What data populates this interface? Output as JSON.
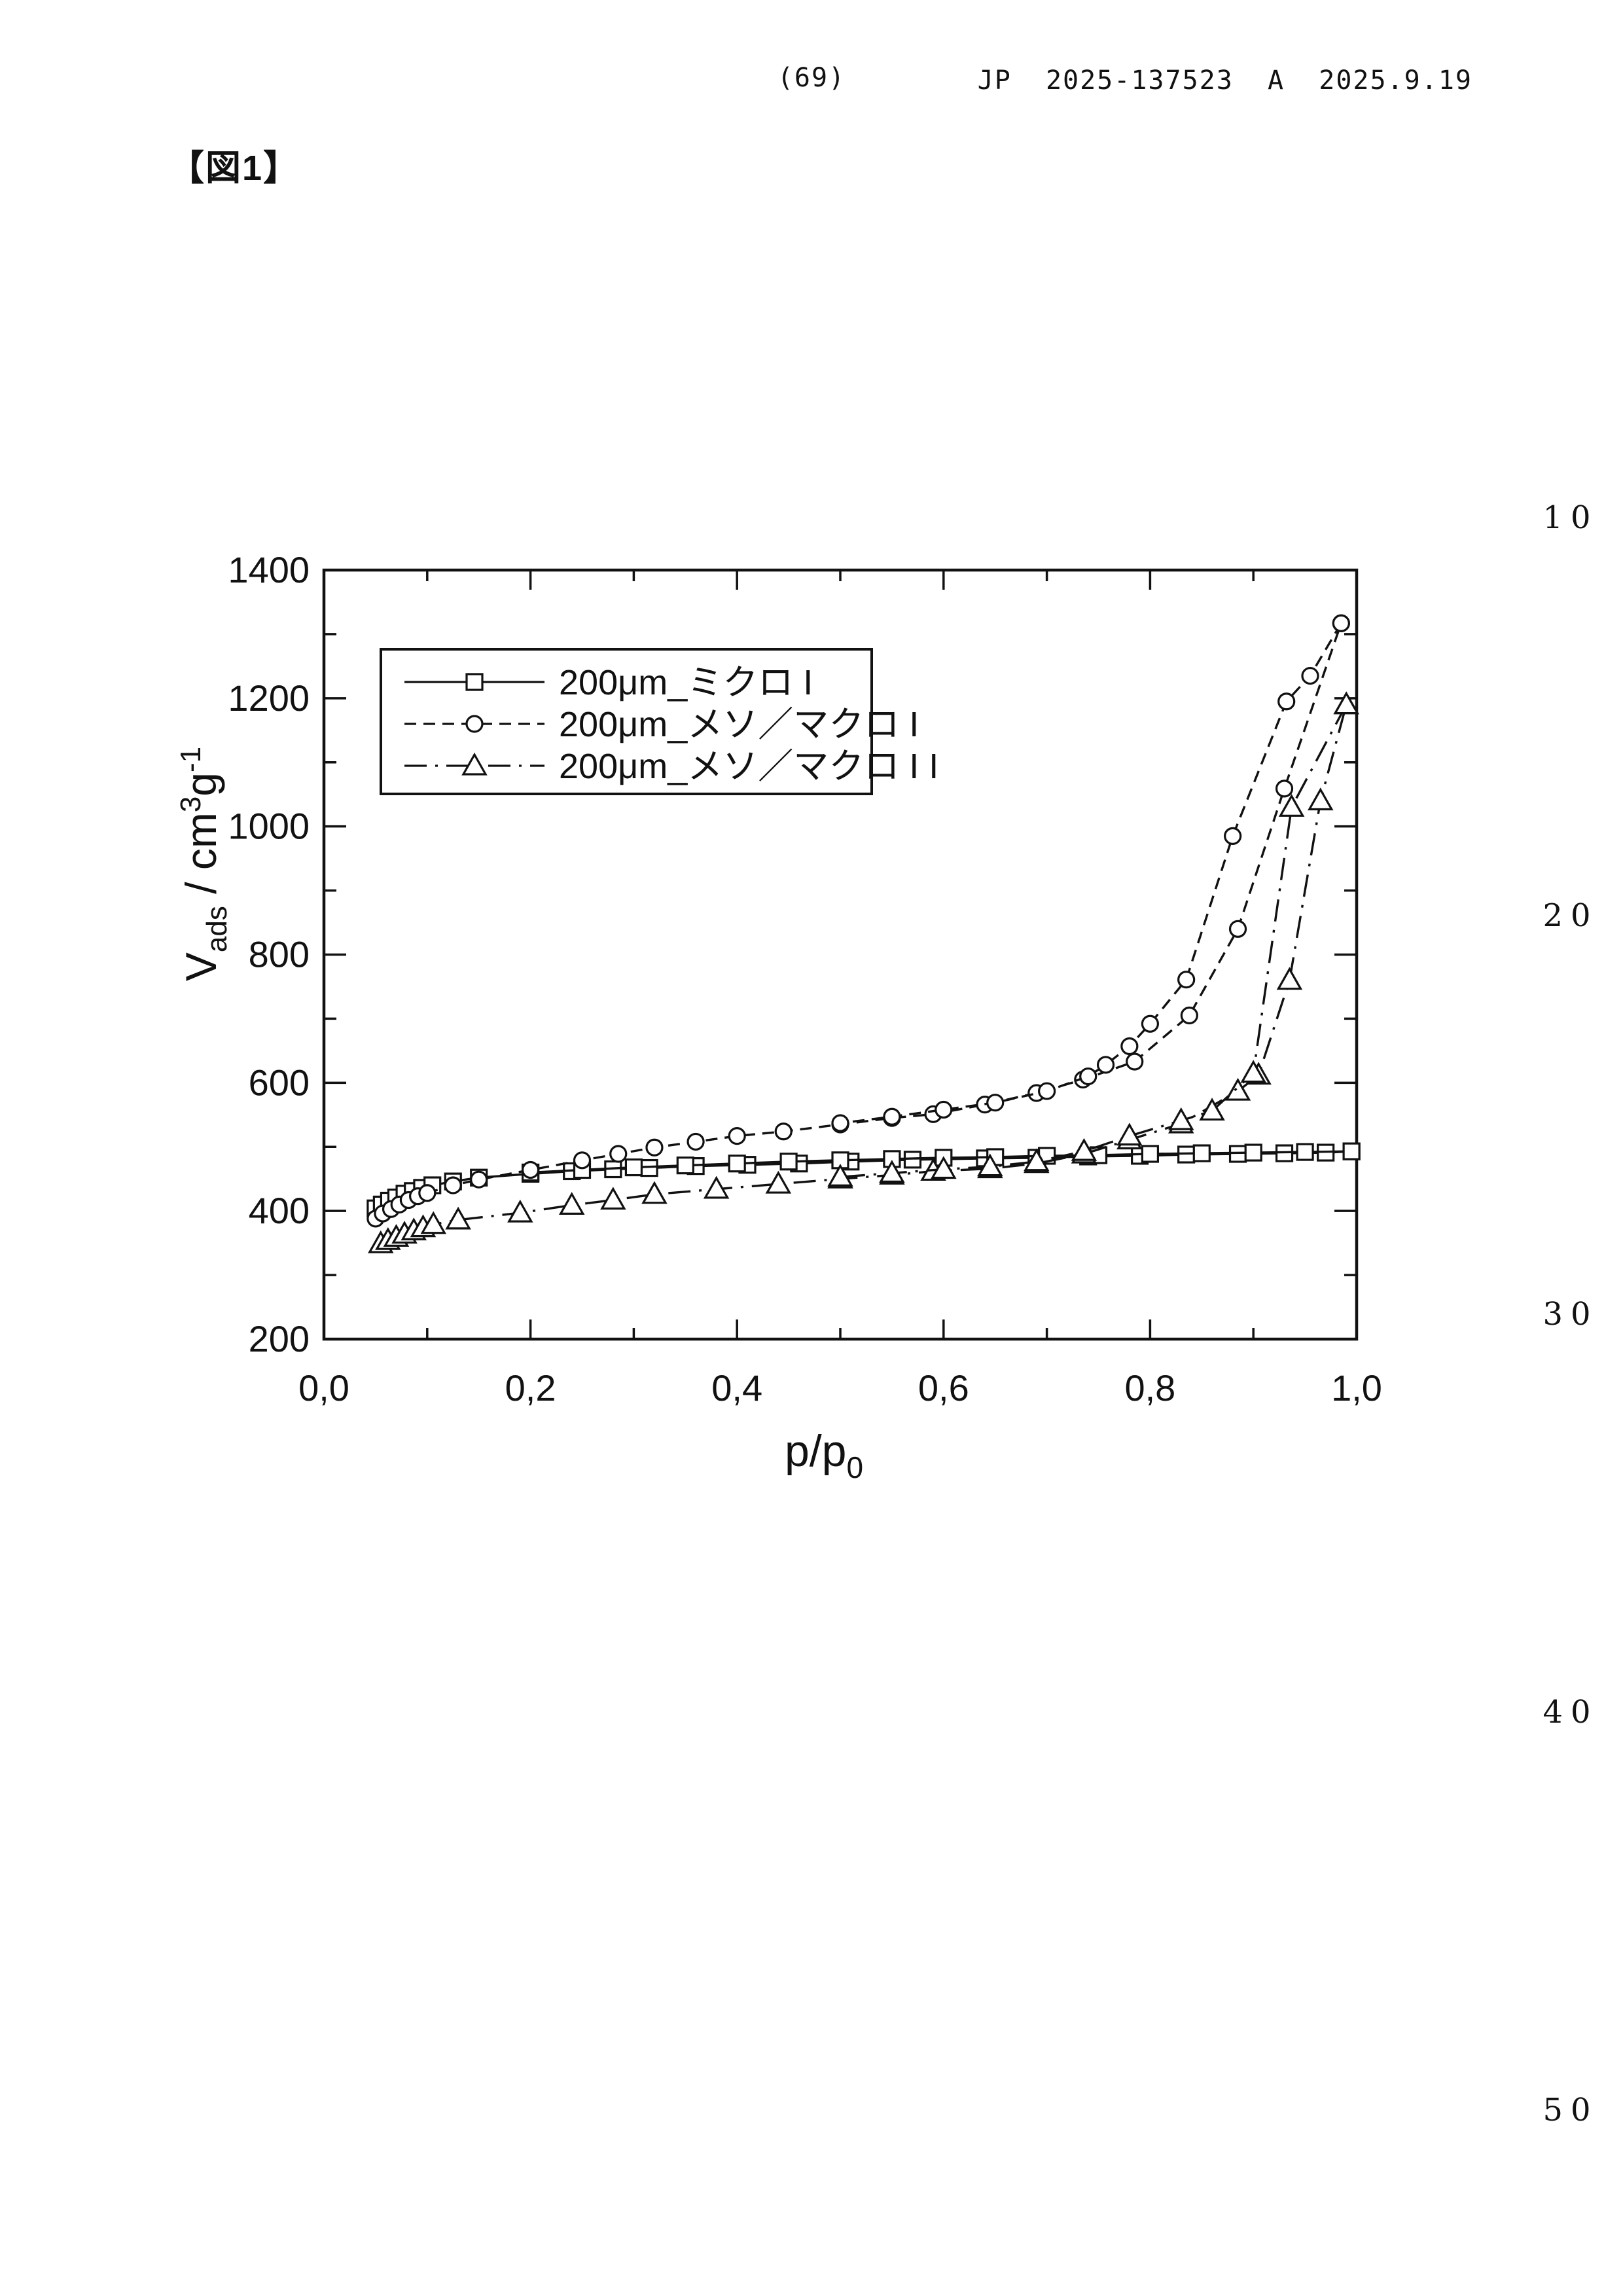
{
  "page": {
    "header": {
      "page_number": "(69)",
      "publication": "JP  2025-137523  A  2025.9.19"
    },
    "figure_label": "【図1】",
    "margin_line_numbers": [
      "10",
      "20",
      "30",
      "40",
      "50"
    ]
  },
  "colors": {
    "ink": "#111111",
    "paper": "#ffffff"
  },
  "chart_data": {
    "type": "line",
    "title": "",
    "xlabel": {
      "base": "p/p",
      "sub": "0"
    },
    "ylabel": {
      "base": "V",
      "sub": "ads",
      "mid": " / cm",
      "sup1": "3",
      "mid2": "g",
      "sup2": "-1"
    },
    "xlim": [
      0.0,
      1.0
    ],
    "ylim": [
      200,
      1400
    ],
    "x_ticks": [
      0.0,
      0.2,
      0.4,
      0.6,
      0.8,
      1.0
    ],
    "x_tick_labels": [
      "0,0",
      "0,2",
      "0,4",
      "0,6",
      "0,8",
      "1,0"
    ],
    "x_minor_step": 0.1,
    "y_ticks": [
      200,
      400,
      600,
      800,
      1000,
      1200,
      1400
    ],
    "y_tick_labels": [
      "200",
      "400",
      "600",
      "800",
      "1000",
      "1200",
      "1400"
    ],
    "y_minor_step": 100,
    "grid": false,
    "legend_position": "upper-left-inside",
    "legend": [
      {
        "label": "200μm_ミクロ I",
        "marker": "square",
        "line": "solid"
      },
      {
        "label": "200μm_メソ／マクロ I",
        "marker": "circle",
        "line": "dashed"
      },
      {
        "label": "200μm_メソ／マクロ I I",
        "marker": "triangle",
        "line": "dashdot"
      }
    ],
    "series": [
      {
        "name": "200μm_ミクロ I (adsorption)",
        "marker": "square",
        "line": "solid",
        "points": [
          [
            0.05,
            404
          ],
          [
            0.056,
            410
          ],
          [
            0.063,
            416
          ],
          [
            0.07,
            421
          ],
          [
            0.078,
            427
          ],
          [
            0.086,
            431
          ],
          [
            0.095,
            436
          ],
          [
            0.105,
            440
          ],
          [
            0.125,
            446
          ],
          [
            0.15,
            452
          ],
          [
            0.2,
            458
          ],
          [
            0.24,
            462
          ],
          [
            0.28,
            465
          ],
          [
            0.315,
            467
          ],
          [
            0.36,
            470
          ],
          [
            0.41,
            472
          ],
          [
            0.46,
            474
          ],
          [
            0.51,
            477
          ],
          [
            0.57,
            480
          ],
          [
            0.64,
            482
          ],
          [
            0.69,
            483
          ],
          [
            0.74,
            485
          ],
          [
            0.79,
            486
          ],
          [
            0.835,
            488
          ],
          [
            0.885,
            489
          ],
          [
            0.93,
            490
          ],
          [
            0.97,
            491
          ],
          [
            0.995,
            493
          ]
        ]
      },
      {
        "name": "200μm_ミクロ I (desorption)",
        "marker": "square",
        "line": "solid",
        "points": [
          [
            0.995,
            493
          ],
          [
            0.95,
            492
          ],
          [
            0.9,
            491
          ],
          [
            0.85,
            490
          ],
          [
            0.8,
            489
          ],
          [
            0.75,
            487
          ],
          [
            0.7,
            486
          ],
          [
            0.65,
            484
          ],
          [
            0.6,
            483
          ],
          [
            0.55,
            481
          ],
          [
            0.5,
            479
          ],
          [
            0.45,
            477
          ],
          [
            0.4,
            474
          ],
          [
            0.35,
            471
          ],
          [
            0.3,
            468
          ],
          [
            0.25,
            464
          ],
          [
            0.2,
            460
          ]
        ]
      },
      {
        "name": "200μm_メソ／マクロ I (adsorption)",
        "marker": "circle",
        "line": "dashed",
        "points": [
          [
            0.05,
            388
          ],
          [
            0.057,
            396
          ],
          [
            0.065,
            403
          ],
          [
            0.073,
            410
          ],
          [
            0.082,
            417
          ],
          [
            0.091,
            423
          ],
          [
            0.1,
            428
          ],
          [
            0.125,
            440
          ],
          [
            0.15,
            449
          ],
          [
            0.2,
            464
          ],
          [
            0.25,
            479
          ],
          [
            0.285,
            489
          ],
          [
            0.32,
            499
          ],
          [
            0.36,
            508
          ],
          [
            0.4,
            517
          ],
          [
            0.445,
            524
          ],
          [
            0.5,
            535
          ],
          [
            0.55,
            545
          ],
          [
            0.59,
            551
          ],
          [
            0.64,
            566
          ],
          [
            0.69,
            584
          ],
          [
            0.735,
            605
          ],
          [
            0.785,
            633
          ],
          [
            0.838,
            705
          ],
          [
            0.885,
            840
          ],
          [
            0.93,
            1059
          ],
          [
            0.985,
            1317
          ]
        ]
      },
      {
        "name": "200μm_メソ／マクロ I (desorption)",
        "marker": "circle",
        "line": "dashed",
        "points": [
          [
            0.985,
            1317
          ],
          [
            0.955,
            1235
          ],
          [
            0.932,
            1195
          ],
          [
            0.88,
            985
          ],
          [
            0.835,
            761
          ],
          [
            0.8,
            692
          ],
          [
            0.78,
            657
          ],
          [
            0.757,
            628
          ],
          [
            0.74,
            610
          ],
          [
            0.7,
            587
          ],
          [
            0.65,
            569
          ],
          [
            0.6,
            558
          ],
          [
            0.55,
            547
          ],
          [
            0.5,
            537
          ]
        ]
      },
      {
        "name": "200μm_メソ／マクロ I I (adsorption)",
        "marker": "triangle",
        "line": "dashdot",
        "points": [
          [
            0.055,
            349
          ],
          [
            0.062,
            354
          ],
          [
            0.07,
            359
          ],
          [
            0.078,
            364
          ],
          [
            0.087,
            369
          ],
          [
            0.096,
            374
          ],
          [
            0.106,
            379
          ],
          [
            0.13,
            386
          ],
          [
            0.19,
            397
          ],
          [
            0.24,
            409
          ],
          [
            0.28,
            417
          ],
          [
            0.32,
            426
          ],
          [
            0.38,
            434
          ],
          [
            0.44,
            442
          ],
          [
            0.5,
            450
          ],
          [
            0.55,
            456
          ],
          [
            0.59,
            462
          ],
          [
            0.645,
            466
          ],
          [
            0.69,
            474
          ],
          [
            0.736,
            489
          ],
          [
            0.78,
            511
          ],
          [
            0.83,
            536
          ],
          [
            0.885,
            587
          ],
          [
            0.905,
            612
          ],
          [
            0.935,
            760
          ],
          [
            0.965,
            1040
          ],
          [
            0.99,
            1190
          ]
        ]
      },
      {
        "name": "200μm_メソ／マクロ I I (desorption)",
        "marker": "triangle",
        "line": "dashdot",
        "points": [
          [
            0.99,
            1190
          ],
          [
            0.937,
            1030
          ],
          [
            0.9,
            615
          ],
          [
            0.86,
            556
          ],
          [
            0.83,
            541
          ],
          [
            0.78,
            517
          ],
          [
            0.736,
            493
          ],
          [
            0.69,
            477
          ],
          [
            0.645,
            469
          ],
          [
            0.6,
            465
          ],
          [
            0.55,
            459
          ],
          [
            0.5,
            453
          ]
        ]
      }
    ]
  }
}
